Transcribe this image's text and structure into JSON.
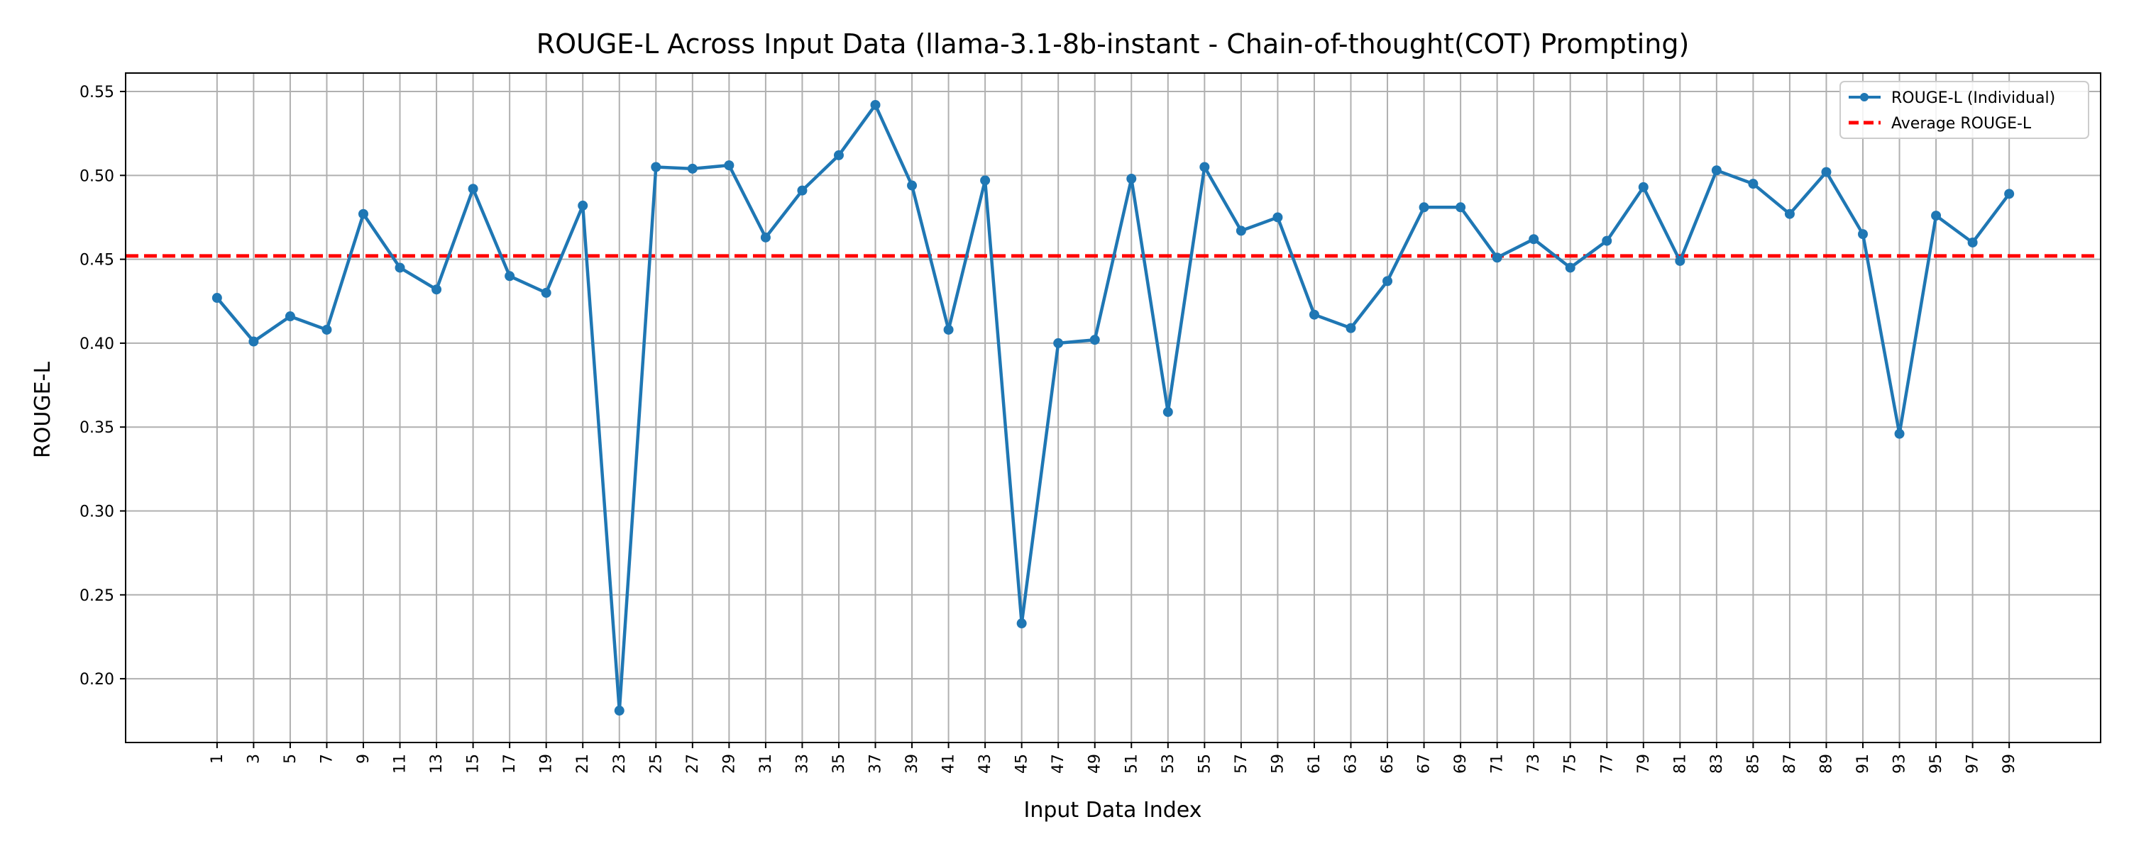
{
  "chart_data": {
    "type": "line",
    "title": "ROUGE-L Across Input Data (llama-3.1-8b-instant - Chain-of-thought(COT) Prompting)",
    "xlabel": "Input Data Index",
    "ylabel": "ROUGE-L",
    "xlim": [
      -4,
      104
    ],
    "ylim": [
      0.162,
      0.561
    ],
    "x_ticks": [
      1,
      3,
      5,
      7,
      9,
      11,
      13,
      15,
      17,
      19,
      21,
      23,
      25,
      27,
      29,
      31,
      33,
      35,
      37,
      39,
      41,
      43,
      45,
      47,
      49,
      51,
      53,
      55,
      57,
      59,
      61,
      63,
      65,
      67,
      69,
      71,
      73,
      75,
      77,
      79,
      81,
      83,
      85,
      87,
      89,
      91,
      93,
      95,
      97,
      99
    ],
    "y_ticks": [
      0.2,
      0.25,
      0.3,
      0.35,
      0.4,
      0.45,
      0.5,
      0.55
    ],
    "y_tick_labels": [
      "0.20",
      "0.25",
      "0.30",
      "0.35",
      "0.40",
      "0.45",
      "0.50",
      "0.55"
    ],
    "grid": true,
    "legend_position": "top-right",
    "series": [
      {
        "name": "ROUGE-L (Individual)",
        "color": "#1f77b4",
        "style": "line-with-markers",
        "x": [
          1,
          3,
          5,
          7,
          9,
          11,
          13,
          15,
          17,
          19,
          21,
          23,
          25,
          27,
          29,
          31,
          33,
          35,
          37,
          39,
          41,
          43,
          45,
          47,
          49,
          51,
          53,
          55,
          57,
          59,
          61,
          63,
          65,
          67,
          69,
          71,
          73,
          75,
          77,
          79,
          81,
          83,
          85,
          87,
          89,
          91,
          93,
          95,
          97,
          99
        ],
        "y": [
          0.427,
          0.401,
          0.416,
          0.408,
          0.477,
          0.445,
          0.432,
          0.492,
          0.44,
          0.43,
          0.482,
          0.181,
          0.505,
          0.504,
          0.506,
          0.463,
          0.491,
          0.512,
          0.542,
          0.494,
          0.408,
          0.497,
          0.233,
          0.4,
          0.402,
          0.498,
          0.359,
          0.505,
          0.467,
          0.475,
          0.417,
          0.409,
          0.437,
          0.481,
          0.481,
          0.451,
          0.462,
          0.445,
          0.461,
          0.493,
          0.449,
          0.503,
          0.495,
          0.477,
          0.502,
          0.465,
          0.346,
          0.476,
          0.46,
          0.489
        ]
      },
      {
        "name": "Average ROUGE-L",
        "color": "#ff0000",
        "style": "dashed-horizontal",
        "value": 0.452
      }
    ]
  }
}
